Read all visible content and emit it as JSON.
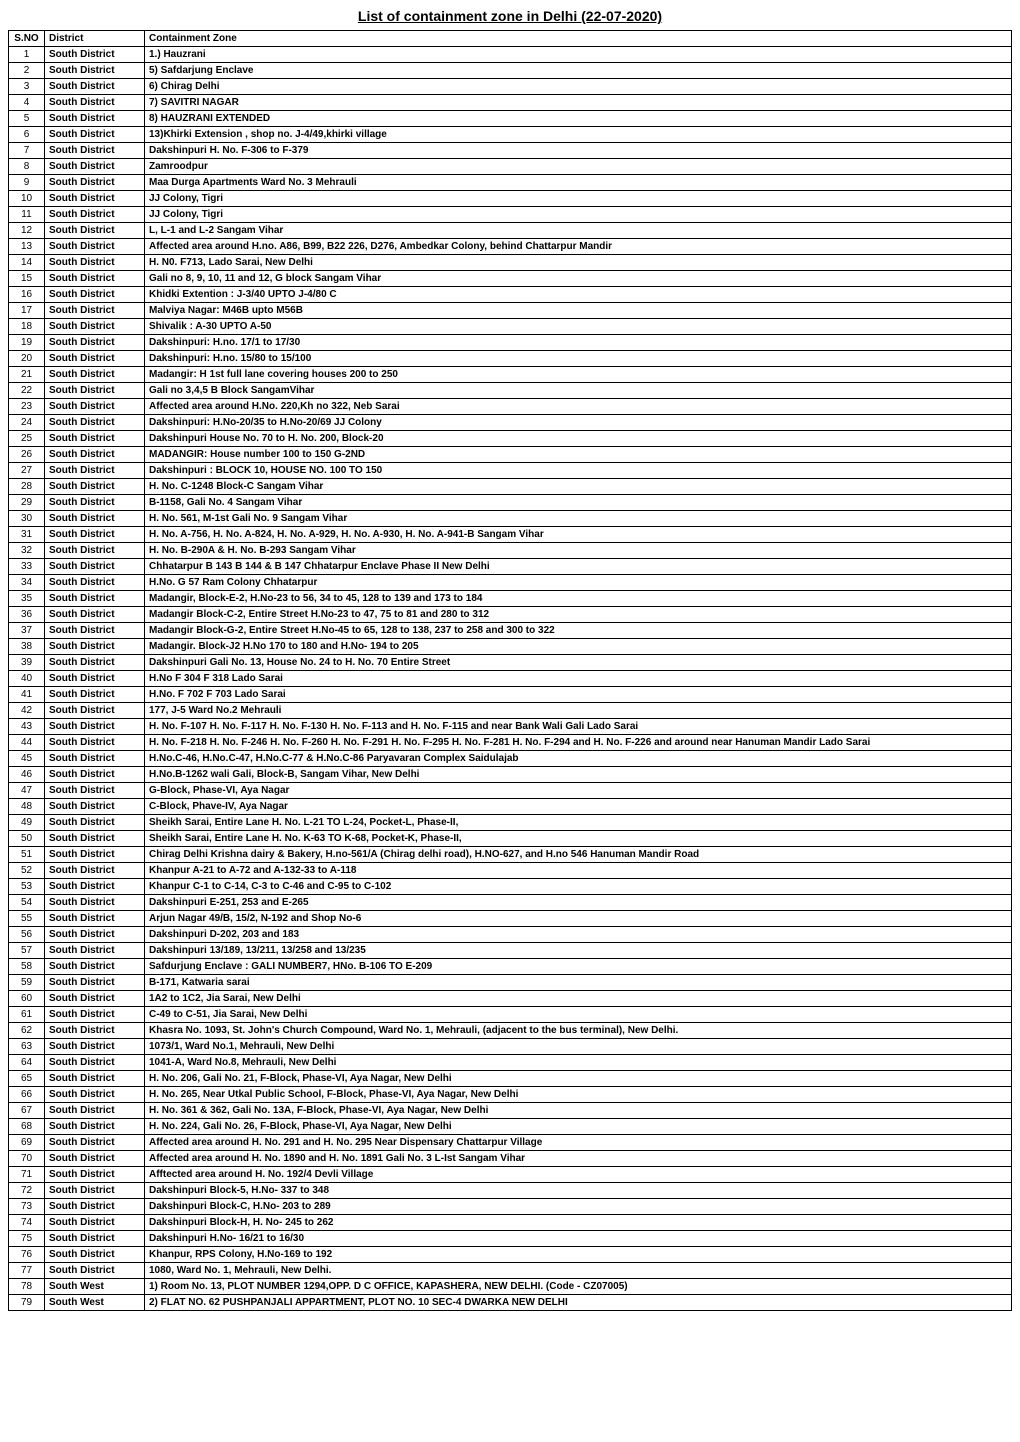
{
  "title": "List of containment zone in Delhi (22-07-2020)",
  "columns": [
    "S.NO",
    "District",
    "Containment Zone"
  ],
  "rows": [
    [
      "1",
      "South District",
      "1.) Hauzrani"
    ],
    [
      "2",
      "South District",
      "5) Safdarjung Enclave"
    ],
    [
      "3",
      "South District",
      "6) Chirag Delhi"
    ],
    [
      "4",
      "South District",
      "7) SAVITRI NAGAR"
    ],
    [
      "5",
      "South District",
      "8) HAUZRANI EXTENDED"
    ],
    [
      "6",
      "South District",
      "13)Khirki Extension , shop no. J-4/49,khirki village"
    ],
    [
      "7",
      "South District",
      "Dakshinpuri H. No. F-306 to F-379"
    ],
    [
      "8",
      "South District",
      "Zamroodpur"
    ],
    [
      "9",
      "South District",
      "Maa Durga Apartments Ward No. 3 Mehrauli"
    ],
    [
      "10",
      "South District",
      "JJ Colony, Tigri"
    ],
    [
      "11",
      "South District",
      "JJ Colony, Tigri"
    ],
    [
      "12",
      "South District",
      "L, L-1 and L-2 Sangam Vihar"
    ],
    [
      "13",
      "South District",
      "Affected area around H.no. A86, B99, B22 226, D276, Ambedkar Colony, behind Chattarpur Mandir"
    ],
    [
      "14",
      "South District",
      "H. N0. F713, Lado Sarai, New Delhi"
    ],
    [
      "15",
      "South District",
      "Gali no 8, 9, 10, 11 and 12, G block Sangam Vihar"
    ],
    [
      "16",
      "South District",
      "Khidki Extention : J-3/40 UPTO J-4/80 C"
    ],
    [
      "17",
      "South District",
      "Malviya Nagar: M46B upto M56B"
    ],
    [
      "18",
      "South District",
      "Shivalik : A-30 UPTO A-50"
    ],
    [
      "19",
      "South District",
      "Dakshinpuri: H.no. 17/1 to 17/30"
    ],
    [
      "20",
      "South District",
      "Dakshinpuri: H.no. 15/80  to 15/100"
    ],
    [
      "21",
      "South District",
      "Madangir: H 1st full lane covering houses 200 to 250"
    ],
    [
      "22",
      "South District",
      "Gali no 3,4,5 B Block SangamVihar"
    ],
    [
      "23",
      "South District",
      "Affected area around  H.No. 220,Kh no 322, Neb Sarai"
    ],
    [
      "24",
      "South District",
      "Dakshinpuri: H.No-20/35 to H.No-20/69 JJ Colony"
    ],
    [
      "25",
      "South District",
      "Dakshinpuri House No. 70 to H. No. 200, Block-20"
    ],
    [
      "26",
      "South District",
      "MADANGIR: House number 100 to 150 G-2ND"
    ],
    [
      "27",
      "South District",
      "Dakshinpuri : BLOCK 10, HOUSE NO. 100 TO 150"
    ],
    [
      "28",
      "South District",
      "H. No. C-1248 Block-C Sangam Vihar"
    ],
    [
      "29",
      "South District",
      "B-1158, Gali No. 4 Sangam Vihar"
    ],
    [
      "30",
      "South District",
      "H. No. 561, M-1st Gali No. 9 Sangam Vihar"
    ],
    [
      "31",
      "South District",
      "H. No. A-756, H. No. A-824, H. No. A-929, H. No. A-930, H. No. A-941-B Sangam Vihar"
    ],
    [
      "32",
      "South District",
      "H. No. B-290A & H. No. B-293 Sangam Vihar"
    ],
    [
      "33",
      "South District",
      "Chhatarpur B 143 B 144 & B 147 Chhatarpur Enclave Phase II New Delhi"
    ],
    [
      "34",
      "South District",
      "H.No. G 57 Ram Colony Chhatarpur"
    ],
    [
      "35",
      "South District",
      "Madangir, Block-E-2, H.No-23 to 56, 34 to 45, 128 to 139 and 173 to 184"
    ],
    [
      "36",
      "South District",
      "Madangir Block-C-2, Entire Street H.No-23 to 47, 75 to 81 and 280 to 312"
    ],
    [
      "37",
      "South District",
      "Madangir Block-G-2, Entire Street H.No-45 to 65, 128 to 138, 237 to 258 and 300 to 322"
    ],
    [
      "38",
      "South District",
      "Madangir. Block-J2 H.No 170 to 180 and H.No- 194 to 205"
    ],
    [
      "39",
      "South District",
      "Dakshinpuri Gali No. 13, House No. 24 to H. No. 70 Entire Street"
    ],
    [
      "40",
      "South District",
      "H.No F 304 F 318 Lado Sarai"
    ],
    [
      "41",
      "South District",
      "H.No. F 702 F 703 Lado Sarai"
    ],
    [
      "42",
      "South District",
      "177, J-5 Ward No.2 Mehrauli"
    ],
    [
      "43",
      "South District",
      "H. No. F-107 H. No. F-117 H. No. F-130 H. No. F-113 and H. No. F-115 and near Bank Wali Gali Lado Sarai"
    ],
    [
      "44",
      "South District",
      "H. No. F-218 H. No. F-246 H. No. F-260 H. No. F-291 H. No. F-295 H. No. F-281 H. No. F-294 and H. No. F-226 and around near Hanuman Mandir Lado Sarai"
    ],
    [
      "45",
      "South District",
      "H.No.C-46, H.No.C-47, H.No.C-77 & H.No.C-86 Paryavaran Complex Saidulajab"
    ],
    [
      "46",
      "South District",
      "H.No.B-1262 wali Gali, Block-B, Sangam Vihar, New Delhi"
    ],
    [
      "47",
      "South District",
      "G-Block, Phase-VI, Aya Nagar"
    ],
    [
      "48",
      "South District",
      "C-Block, Phave-IV, Aya Nagar"
    ],
    [
      "49",
      "South District",
      "Sheikh Sarai, Entire Lane H. No. L-21 TO L-24, Pocket-L, Phase-II,"
    ],
    [
      "50",
      "South District",
      "Sheikh Sarai, Entire Lane H. No. K-63 TO K-68, Pocket-K, Phase-II,"
    ],
    [
      "51",
      "South District",
      "Chirag Delhi Krishna dairy & Bakery, H.no-561/A (Chirag delhi road), H.NO-627, and H.no 546 Hanuman Mandir Road"
    ],
    [
      "52",
      "South District",
      "Khanpur A-21 to A-72 and A-132-33 to A-118"
    ],
    [
      "53",
      "South District",
      "Khanpur C-1 to C-14, C-3 to C-46 and C-95 to C-102"
    ],
    [
      "54",
      "South District",
      "Dakshinpuri E-251, 253 and E-265"
    ],
    [
      "55",
      "South District",
      "Arjun Nagar 49/B, 15/2, N-192 and Shop No-6"
    ],
    [
      "56",
      "South District",
      "Dakshinpuri D-202, 203 and 183"
    ],
    [
      "57",
      "South District",
      "Dakshinpuri 13/189, 13/211, 13/258 and 13/235"
    ],
    [
      "58",
      "South District",
      "Safdurjung Enclave : GALI NUMBER7, HNo. B-106 TO E-209"
    ],
    [
      "59",
      "South District",
      "B-171, Katwaria sarai"
    ],
    [
      "60",
      "South District",
      "1A2 to 1C2, Jia Sarai, New Delhi"
    ],
    [
      "61",
      "South District",
      "C-49 to C-51, Jia Sarai, New Delhi"
    ],
    [
      "62",
      "South District",
      "Khasra No. 1093, St. John's Church Compound, Ward No. 1, Mehrauli, (adjacent to the bus terminal), New Delhi."
    ],
    [
      "63",
      "South District",
      "1073/1, Ward No.1, Mehrauli, New Delhi"
    ],
    [
      "64",
      "South District",
      "1041-A, Ward No.8, Mehrauli, New Delhi"
    ],
    [
      "65",
      "South District",
      "H. No. 206, Gali No. 21, F-Block, Phase-VI, Aya Nagar, New Delhi"
    ],
    [
      "66",
      "South District",
      "H. No. 265, Near Utkal Public School, F-Block, Phase-VI, Aya Nagar, New Delhi"
    ],
    [
      "67",
      "South District",
      "H. No. 361 & 362, Gali No. 13A, F-Block, Phase-VI, Aya Nagar, New Delhi"
    ],
    [
      "68",
      "South District",
      "H. No. 224, Gali No. 26, F-Block, Phase-VI, Aya Nagar, New Delhi"
    ],
    [
      "69",
      "South District",
      "Affected area around H. No. 291 and H. No. 295 Near Dispensary Chattarpur Village"
    ],
    [
      "70",
      "South District",
      "Affected area around H. No. 1890 and H. No. 1891 Gali No. 3 L-Ist Sangam Vihar"
    ],
    [
      "71",
      "South District",
      "Afftected area around H. No. 192/4 Devli Village"
    ],
    [
      "72",
      "South District",
      "Dakshinpuri Block-5, H.No- 337 to 348"
    ],
    [
      "73",
      "South District",
      "Dakshinpuri Block-C, H.No- 203 to 289"
    ],
    [
      "74",
      "South District",
      "Dakshinpuri Block-H, H. No- 245 to 262"
    ],
    [
      "75",
      "South District",
      "Dakshinpuri H.No- 16/21 to 16/30"
    ],
    [
      "76",
      "South District",
      "Khanpur, RPS Colony, H.No-169 to 192"
    ],
    [
      "77",
      "South District",
      "1080, Ward No. 1, Mehrauli, New Delhi."
    ],
    [
      "78",
      "South West",
      "1) Room No. 13, PLOT NUMBER 1294,OPP. D C OFFICE, KAPASHERA, NEW DELHI. (Code - CZ07005)"
    ],
    [
      "79",
      "South West",
      "2) FLAT NO. 62 PUSHPANJALI APPARTMENT, PLOT NO. 10 SEC-4 DWARKA NEW DELHI"
    ]
  ]
}
